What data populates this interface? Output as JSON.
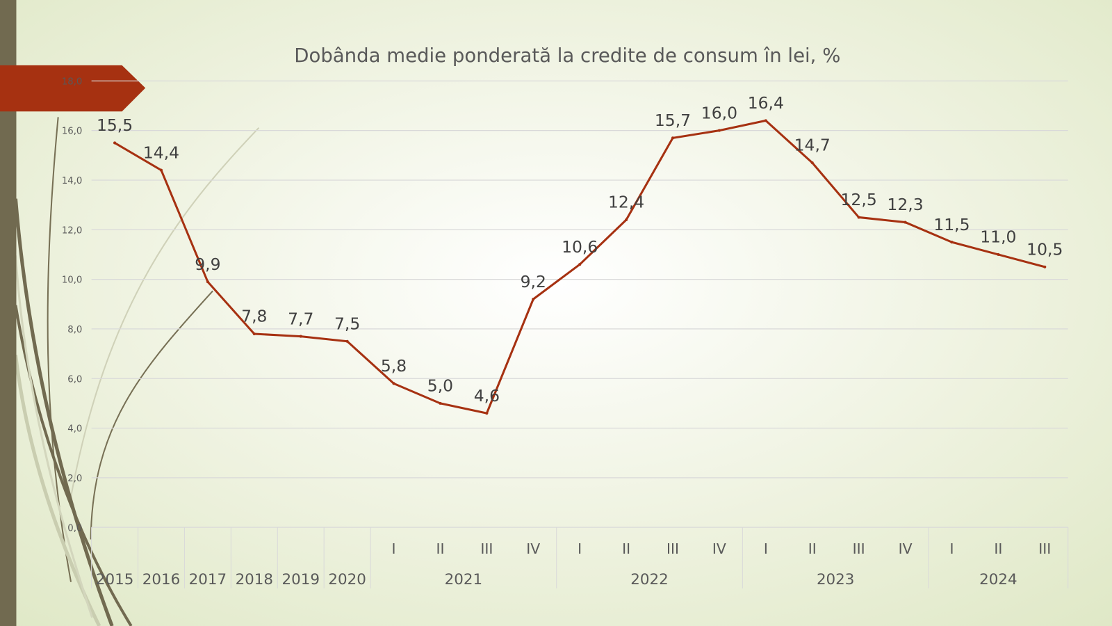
{
  "chart_data": {
    "type": "line",
    "title": "Dobânda medie ponderată la credite de consum în lei, %",
    "categories": [
      {
        "label": "2015",
        "group": ""
      },
      {
        "label": "2016",
        "group": ""
      },
      {
        "label": "2017",
        "group": ""
      },
      {
        "label": "2018",
        "group": ""
      },
      {
        "label": "2019",
        "group": ""
      },
      {
        "label": "2020",
        "group": ""
      },
      {
        "label": "I",
        "group": "2021"
      },
      {
        "label": "II",
        "group": "2021"
      },
      {
        "label": "III",
        "group": "2021"
      },
      {
        "label": "IV",
        "group": "2021"
      },
      {
        "label": "I",
        "group": "2022"
      },
      {
        "label": "II",
        "group": "2022"
      },
      {
        "label": "III",
        "group": "2022"
      },
      {
        "label": "IV",
        "group": "2022"
      },
      {
        "label": "I",
        "group": "2023"
      },
      {
        "label": "II",
        "group": "2023"
      },
      {
        "label": "III",
        "group": "2023"
      },
      {
        "label": "IV",
        "group": "2023"
      },
      {
        "label": "I",
        "group": "2024"
      },
      {
        "label": "II",
        "group": "2024"
      },
      {
        "label": "III",
        "group": "2024"
      }
    ],
    "groups": [
      "2021",
      "2022",
      "2023",
      "2024"
    ],
    "values": [
      15.5,
      14.4,
      9.9,
      7.8,
      7.7,
      7.5,
      5.8,
      5.0,
      4.6,
      9.2,
      10.6,
      12.4,
      15.7,
      16.0,
      16.4,
      14.7,
      12.5,
      12.3,
      11.5,
      11.0,
      10.5
    ],
    "data_labels": [
      "15,5",
      "14,4",
      "9,9",
      "7,8",
      "7,7",
      "7,5",
      "5,8",
      "5,0",
      "4,6",
      "9,2",
      "10,6",
      "12,4",
      "15,7",
      "16,0",
      "16,4",
      "14,7",
      "12,5",
      "12,3",
      "11,5",
      "11,0",
      "10,5"
    ],
    "yticks": [
      "0,0",
      "2,0",
      "4,0",
      "6,0",
      "8,0",
      "10,0",
      "12,0",
      "14,0",
      "16,0",
      "18,0"
    ],
    "ylim": [
      0,
      18
    ],
    "xlabel": "",
    "ylabel": "",
    "grid": true,
    "legend": "none",
    "colors": {
      "line": "#a63111",
      "accent_banner": "#a63111",
      "side_bar": "#716a50",
      "text": "#404040",
      "grid": "#d9d9d9"
    }
  }
}
